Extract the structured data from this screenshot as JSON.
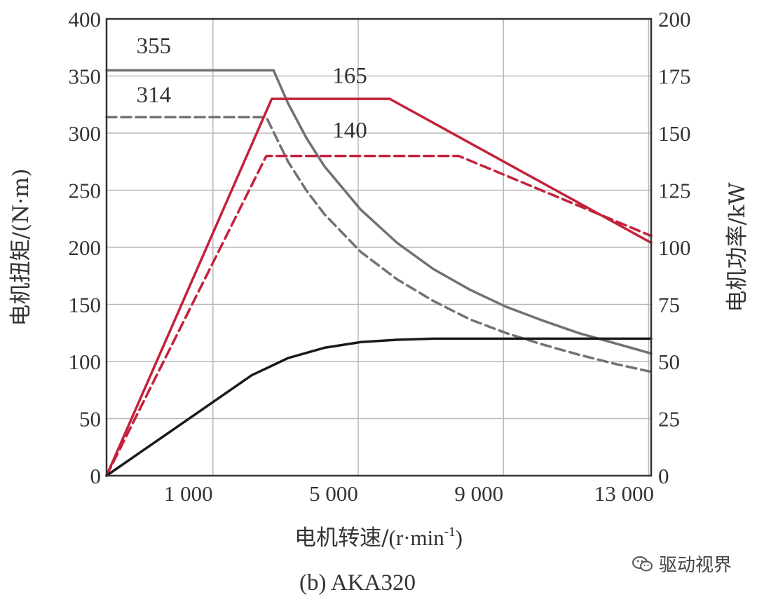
{
  "chart_data": {
    "type": "line",
    "caption": "(b) AKA320",
    "xlabel_main": "电机转速/",
    "xlabel_unit_a": "(r·min",
    "xlabel_unit_sup": "-1",
    "xlabel_unit_b": ")",
    "ylabel_left": "电机扭矩/(N·m)",
    "ylabel_right": "电机功率/kW",
    "xlim": [
      0,
      15000
    ],
    "ylim_left": [
      0,
      400
    ],
    "ylim_right": [
      0,
      200
    ],
    "x_ticks": [
      {
        "value": 1000,
        "label": "1 000"
      },
      {
        "value": 5000,
        "label": "5 000"
      },
      {
        "value": 9000,
        "label": "9 000"
      },
      {
        "value": 13000,
        "label": "13 000"
      }
    ],
    "y_left_ticks": [
      {
        "value": 0,
        "label": "0"
      },
      {
        "value": 50,
        "label": "50"
      },
      {
        "value": 100,
        "label": "100"
      },
      {
        "value": 150,
        "label": "150"
      },
      {
        "value": 200,
        "label": "200"
      },
      {
        "value": 250,
        "label": "250"
      },
      {
        "value": 300,
        "label": "300"
      },
      {
        "value": 350,
        "label": "350"
      },
      {
        "value": 400,
        "label": "400"
      }
    ],
    "y_right_ticks": [
      {
        "value": 0,
        "label": "0"
      },
      {
        "value": 25,
        "label": "25"
      },
      {
        "value": 50,
        "label": "50"
      },
      {
        "value": 75,
        "label": "75"
      },
      {
        "value": 100,
        "label": "100"
      },
      {
        "value": 125,
        "label": "125"
      },
      {
        "value": 150,
        "label": "150"
      },
      {
        "value": 175,
        "label": "175"
      },
      {
        "value": 200,
        "label": "200"
      }
    ],
    "grid": true,
    "series": [
      {
        "axis": "left",
        "color": "#707278",
        "style": "solid",
        "x": [
          0,
          4600,
          5000,
          5500,
          6000,
          7000,
          8000,
          9000,
          10000,
          11000,
          12000,
          13000,
          14000,
          15000
        ],
        "y": [
          355,
          355,
          326,
          296,
          271,
          233,
          204,
          181,
          163,
          148,
          136,
          125,
          116,
          107
        ]
      },
      {
        "axis": "left",
        "color": "#707278",
        "style": "dashed",
        "x": [
          0,
          4400,
          5000,
          5500,
          6000,
          7000,
          8000,
          9000,
          10000,
          11000,
          12000,
          13000,
          14000,
          15000
        ],
        "y": [
          314,
          314,
          275,
          250,
          229,
          196,
          172,
          153,
          137,
          125,
          115,
          106,
          98,
          91
        ]
      },
      {
        "axis": "right",
        "color": "#c4213b",
        "style": "solid",
        "x": [
          0,
          4550,
          7800,
          15000
        ],
        "y": [
          0,
          165,
          165,
          102
        ]
      },
      {
        "axis": "right",
        "color": "#c4213b",
        "style": "dashed",
        "x": [
          0,
          4400,
          9700,
          15000
        ],
        "y": [
          0,
          140,
          140,
          105
        ]
      },
      {
        "axis": "left",
        "color": "#1a1a1a",
        "style": "solid",
        "x": [
          0,
          1000,
          2000,
          3000,
          4000,
          5000,
          6000,
          7000,
          8000,
          9000,
          10000,
          12000,
          15000
        ],
        "y": [
          0,
          22,
          44,
          66,
          88,
          103,
          112,
          117,
          119,
          120,
          120,
          120,
          120
        ]
      }
    ],
    "annotations": [
      {
        "text": "355",
        "x": 1300,
        "y": 370,
        "axis": "left"
      },
      {
        "text": "314",
        "x": 1300,
        "y": 327,
        "axis": "left"
      },
      {
        "text": "165",
        "x": 6700,
        "y": 172,
        "axis": "right"
      },
      {
        "text": "140",
        "x": 6700,
        "y": 148,
        "axis": "right"
      }
    ]
  },
  "watermark": {
    "text": "驱动视界",
    "icon": "wechat-icon"
  }
}
